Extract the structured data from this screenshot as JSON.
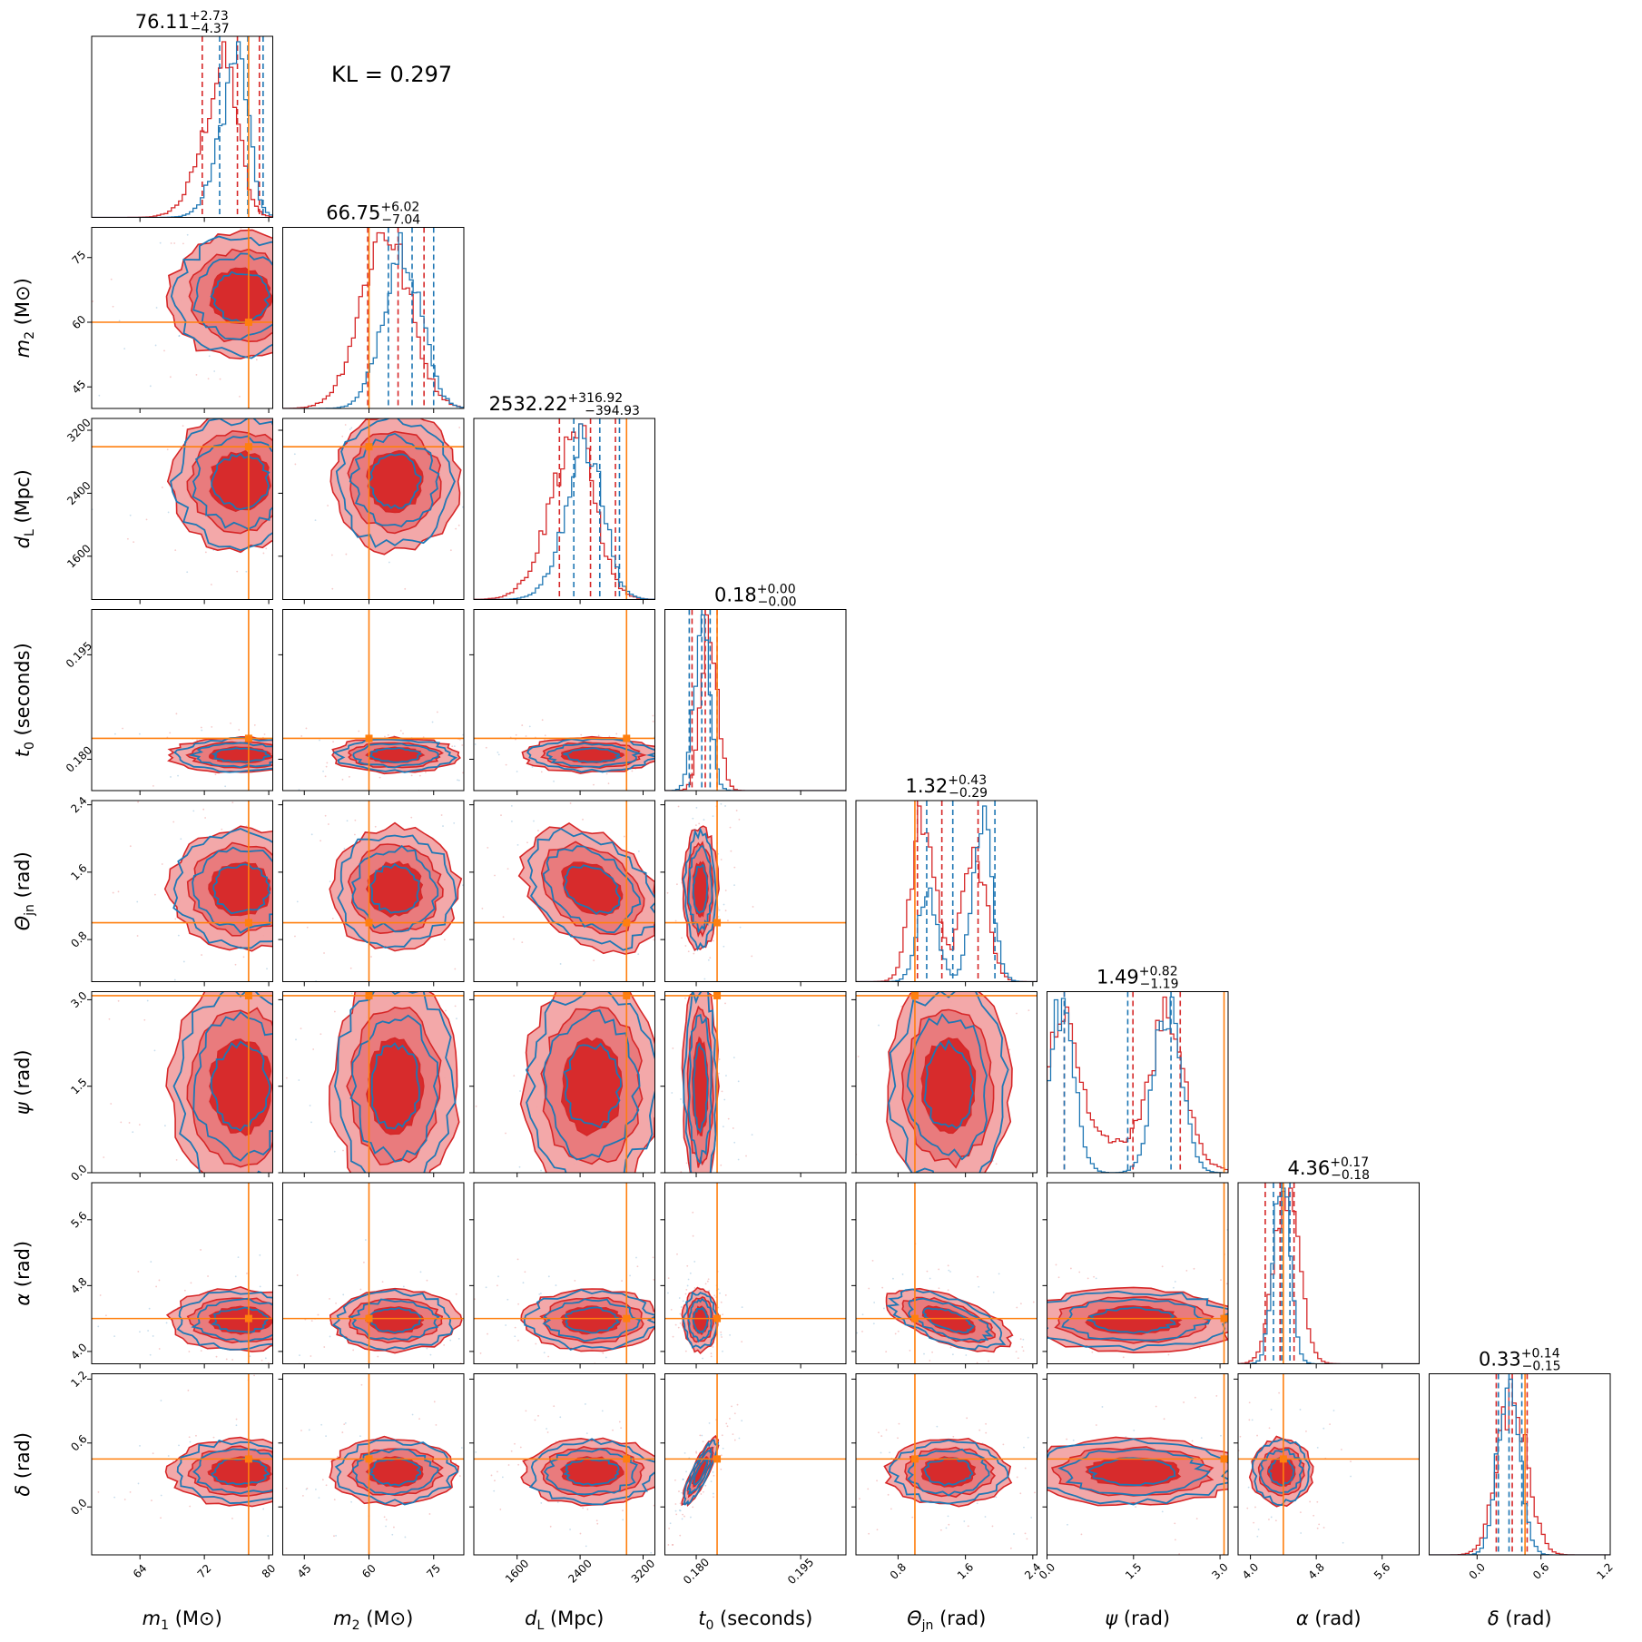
{
  "annotation": {
    "kl_text": "KL = 0.297"
  },
  "colors": {
    "red": "#d62728",
    "red_light": "#f2a3a4",
    "red_mid": "#e8787a",
    "blue": "#1f77b4",
    "orange": "#ff7f0e"
  },
  "chart_data": {
    "type": "corner",
    "series": [
      {
        "name": "",
        "color": "#d62728",
        "style": "filled contours + step histograms"
      },
      {
        "name": "",
        "color": "#1f77b4",
        "style": "line contours + step histograms"
      }
    ],
    "parameters": [
      {
        "key": "m1",
        "label_sym": "m",
        "label_sub": "1",
        "label_unit": " (M⊙)",
        "range": [
          58,
          80.5
        ],
        "ticks": [
          64,
          72,
          80
        ],
        "tick_labels": [
          "64",
          "72",
          "80"
        ],
        "truth": 77.5,
        "title_value": "76.11",
        "title_plus": "+2.73",
        "title_minus": "−4.37",
        "red_hist": {
          "median": 76.11,
          "q_lo": 71.74,
          "q_hi": 78.84,
          "sigma": 3.2,
          "skew": -3
        },
        "blue_hist": {
          "median": 77.4,
          "q_lo": 73.9,
          "q_hi": 79.3,
          "sigma": 2.6,
          "skew": -3
        },
        "contour_center": 76.5,
        "contour_sigma": 4.2
      },
      {
        "key": "m2",
        "label_sym": "m",
        "label_sub": "2",
        "label_unit": " (M⊙)",
        "range": [
          40,
          82
        ],
        "ticks": [
          45,
          60,
          75
        ],
        "tick_labels": [
          "45",
          "60",
          "75"
        ],
        "truth": 60.0,
        "title_value": "66.75",
        "title_plus": "+6.02",
        "title_minus": "−7.04",
        "red_hist": {
          "median": 66.75,
          "q_lo": 59.71,
          "q_hi": 72.77,
          "sigma": 6.5,
          "skew": -1
        },
        "blue_hist": {
          "median": 70.0,
          "q_lo": 64.5,
          "q_hi": 75.0,
          "sigma": 5.0,
          "skew": -1
        },
        "contour_center": 66.0,
        "contour_sigma": 7.0
      },
      {
        "key": "dL",
        "label_sym": "d",
        "label_sub": "L",
        "label_unit": " (Mpc)",
        "range": [
          1050,
          3350
        ],
        "ticks": [
          1600,
          2400,
          3200
        ],
        "tick_labels": [
          "1600",
          "2400",
          "3200"
        ],
        "truth": 2990,
        "title_value": "2532.22",
        "title_plus": "+316.92",
        "title_minus": "−394.93",
        "red_hist": {
          "median": 2532.22,
          "q_lo": 2137.29,
          "q_hi": 2849.14,
          "sigma": 380,
          "skew": -2
        },
        "blue_hist": {
          "median": 2650,
          "q_lo": 2320,
          "q_hi": 2900,
          "sigma": 320,
          "skew": -2
        },
        "contour_center": 2550,
        "contour_sigma": 420
      },
      {
        "key": "t0",
        "label_sym": "t",
        "label_sub": "0",
        "label_unit": " (seconds)",
        "range": [
          0.1755,
          0.2015
        ],
        "ticks": [
          0.18,
          0.195
        ],
        "tick_labels": [
          "0.180",
          "0.195"
        ],
        "truth": 0.183,
        "title_value": "0.18",
        "title_plus": "+0.00",
        "title_minus": "−0.00",
        "red_hist": {
          "median": 0.1813,
          "q_lo": 0.1794,
          "q_hi": 0.183,
          "sigma": 0.0013,
          "skew": 1
        },
        "blue_hist": {
          "median": 0.1808,
          "q_lo": 0.179,
          "q_hi": 0.182,
          "sigma": 0.0011,
          "skew": 0
        },
        "contour_center": 0.1806,
        "contour_sigma": 0.0012
      },
      {
        "key": "theta",
        "label_sym": "Θ",
        "label_sub": "jn",
        "label_unit": " (rad)",
        "range": [
          0.3,
          2.45
        ],
        "ticks": [
          0.8,
          1.6,
          2.4
        ],
        "tick_labels": [
          "0.8",
          "1.6",
          "2.4"
        ],
        "truth": 1.0,
        "title_value": "1.32",
        "title_plus": "+0.43",
        "title_minus": "−0.29",
        "red_hist": {
          "bimodal": [
            [
              1.1,
              0.14,
              1.0
            ],
            [
              1.7,
              0.15,
              0.75
            ]
          ],
          "median": 1.32,
          "q_lo": 1.03,
          "q_hi": 1.75
        },
        "blue_hist": {
          "bimodal": [
            [
              1.15,
              0.12,
              0.55
            ],
            [
              1.8,
              0.12,
              1.0
            ]
          ],
          "median": 1.45,
          "q_lo": 1.14,
          "q_hi": 1.95
        },
        "contour_center": 1.4,
        "contour_sigma": 0.35
      },
      {
        "key": "psi",
        "label_sym": "ψ",
        "label_sub": "",
        "label_unit": " (rad)",
        "range": [
          0.0,
          3.14
        ],
        "ticks": [
          0.0,
          1.5,
          3.0
        ],
        "tick_labels": [
          "0.0",
          "1.5",
          "3.0"
        ],
        "truth": 3.07,
        "title_value": "1.49",
        "title_plus": "+0.82",
        "title_minus": "−1.19",
        "red_hist": {
          "bimodal": [
            [
              0.28,
              0.25,
              1.0
            ],
            [
              2.1,
              0.28,
              0.95
            ],
            [
              1.2,
              0.9,
              0.22
            ]
          ],
          "median": 1.49,
          "q_lo": 0.3,
          "q_hi": 2.31
        },
        "blue_hist": {
          "bimodal": [
            [
              0.25,
              0.22,
              1.0
            ],
            [
              2.1,
              0.24,
              1.0
            ]
          ],
          "median": 1.4,
          "q_lo": 0.3,
          "q_hi": 2.15
        },
        "contour_center": 1.5,
        "contour_sigma": 0.9
      },
      {
        "key": "alpha",
        "label_sym": "α",
        "label_sub": "",
        "label_unit": " (rad)",
        "range": [
          3.85,
          6.05
        ],
        "ticks": [
          4.0,
          4.8,
          5.6
        ],
        "tick_labels": [
          "4.0",
          "4.8",
          "5.6"
        ],
        "truth": 4.4,
        "title_value": "4.36",
        "title_plus": "+0.17",
        "title_minus": "−0.18",
        "red_hist": {
          "median": 4.36,
          "q_lo": 4.18,
          "q_hi": 4.53,
          "sigma": 0.17,
          "skew": 1
        },
        "blue_hist": {
          "median": 4.38,
          "q_lo": 4.28,
          "q_hi": 4.48,
          "sigma": 0.1,
          "skew": 0
        },
        "contour_center": 4.38,
        "contour_sigma": 0.18
      },
      {
        "key": "delta",
        "label_sym": "δ",
        "label_sub": "",
        "label_unit": " (rad)",
        "range": [
          -0.45,
          1.25
        ],
        "ticks": [
          0.0,
          0.6,
          1.2
        ],
        "tick_labels": [
          "0.0",
          "0.6",
          "1.2"
        ],
        "truth": 0.45,
        "title_value": "0.33",
        "title_plus": "+0.14",
        "title_minus": "−0.15",
        "red_hist": {
          "median": 0.33,
          "q_lo": 0.18,
          "q_hi": 0.47,
          "sigma": 0.14,
          "skew": 0
        },
        "blue_hist": {
          "median": 0.3,
          "q_lo": 0.2,
          "q_hi": 0.42,
          "sigma": 0.1,
          "skew": 0
        },
        "contour_center": 0.33,
        "contour_sigma": 0.15
      }
    ],
    "correlations": {
      "t0|delta": 0.85,
      "theta|alpha": -0.6,
      "dL|theta": -0.35
    }
  }
}
